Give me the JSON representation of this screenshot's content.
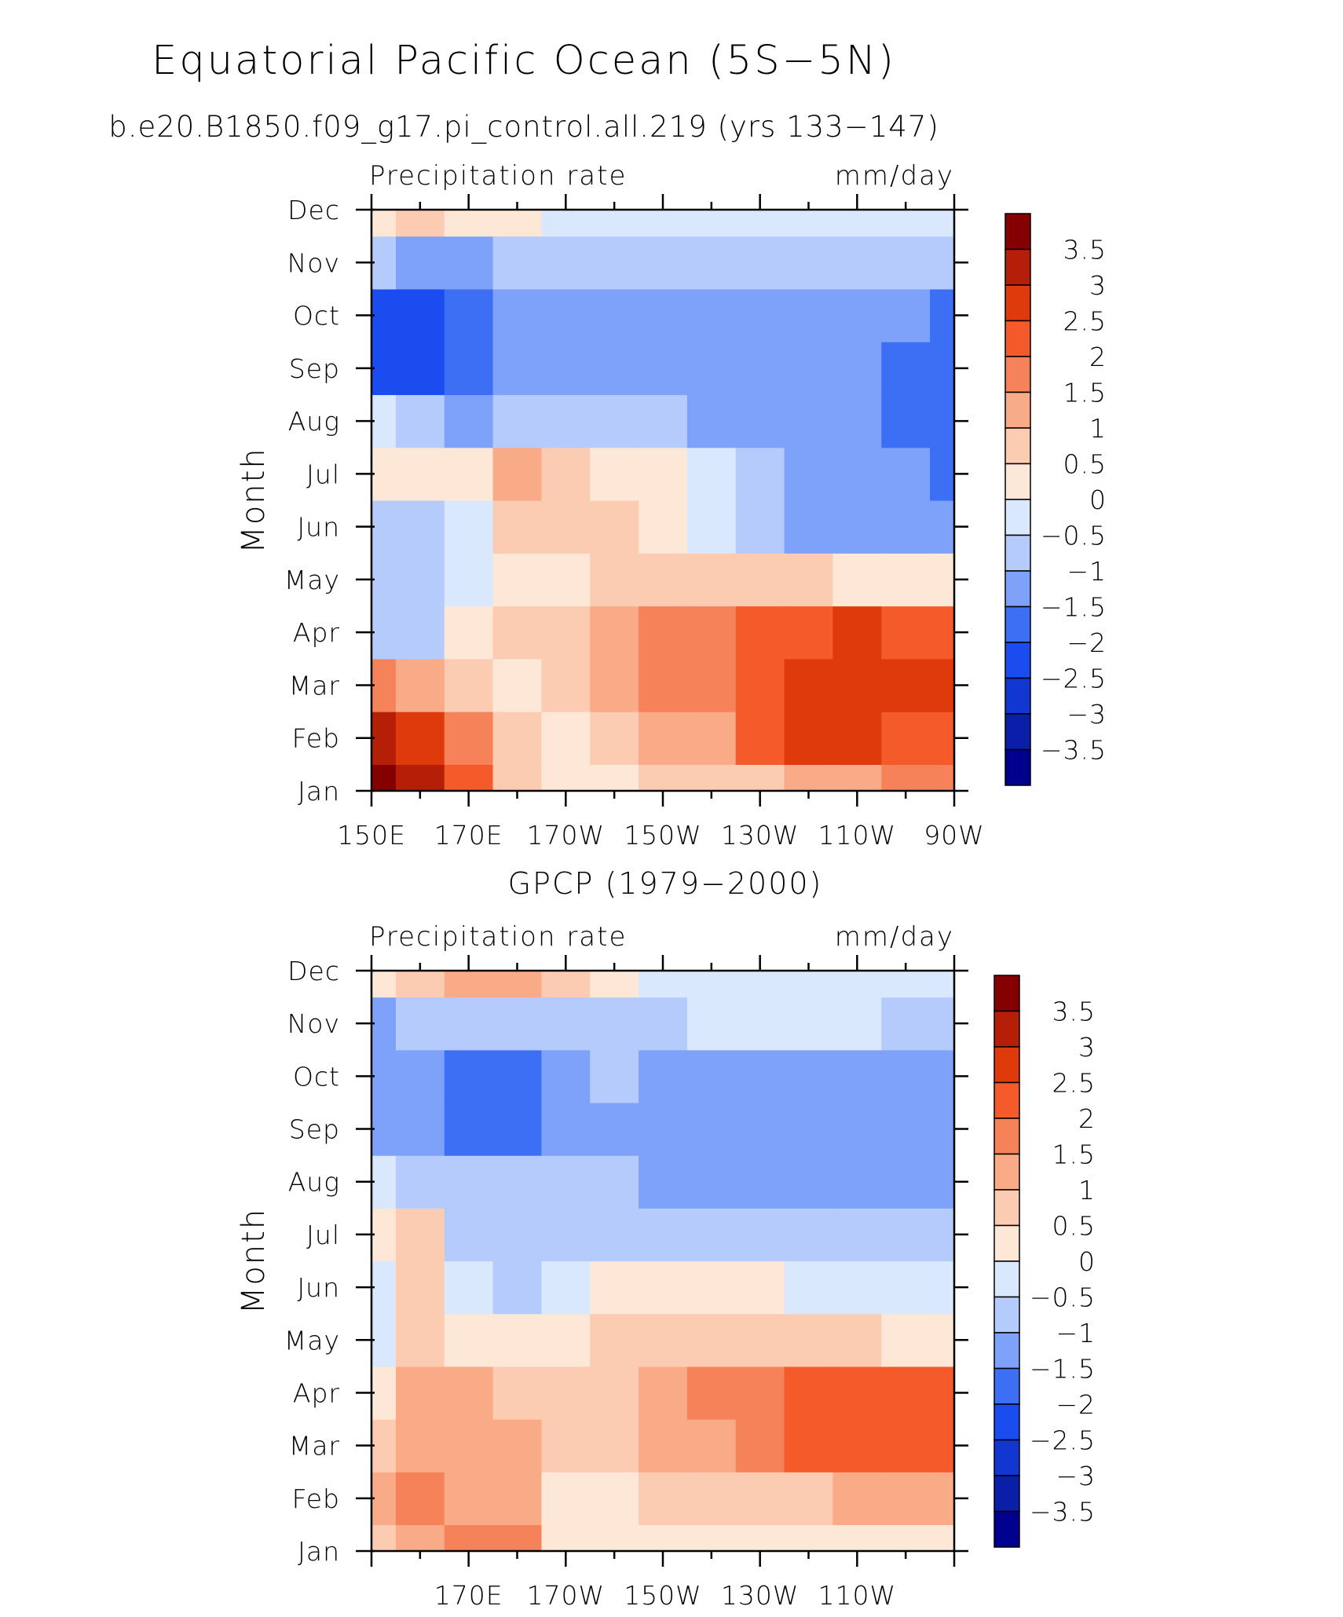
{
  "page": {
    "title": "Equatorial Pacific Ocean (5S−5N)",
    "subtitle": "b.e20.B1850.f09_g17.pi_control.all.219 (yrs 133−147)"
  },
  "colorbar": {
    "levels": [
      -3.5,
      -3,
      -2.5,
      -2,
      -1.5,
      -1,
      -0.5,
      0,
      0.5,
      1,
      1.5,
      2,
      2.5,
      3,
      3.5
    ],
    "labels": [
      "3.5",
      "3",
      "2.5",
      "2",
      "1.5",
      "1",
      "0.5",
      "0",
      "−0.5",
      "−1",
      "−1.5",
      "−2",
      "−2.5",
      "−3",
      "−3.5"
    ],
    "colors": [
      "#00008f",
      "#0a1fa8",
      "#1236d0",
      "#1b4cf0",
      "#3d6ff5",
      "#7ea2fa",
      "#b4cbfb",
      "#d9e8fc",
      "#fde7d6",
      "#fbccb2",
      "#f9aa87",
      "#f6825a",
      "#f45a2a",
      "#de3a0c",
      "#b51f08",
      "#850000"
    ]
  },
  "chart_data": [
    {
      "type": "heatmap",
      "title": "",
      "left_label": "Precipitation rate",
      "right_label": "mm/day",
      "ylabel": "Month",
      "xlabel": "",
      "x_tick_labels": [
        "150E",
        "170E",
        "170W",
        "150W",
        "130W",
        "110W",
        "90W"
      ],
      "y_tick_labels": [
        "Jan",
        "Feb",
        "Mar",
        "Apr",
        "May",
        "Jun",
        "Jul",
        "Aug",
        "Sep",
        "Oct",
        "Nov",
        "Dec"
      ],
      "x": [
        150,
        160,
        170,
        180,
        190,
        200,
        210,
        220,
        230,
        240,
        250,
        260,
        270
      ],
      "units": "mm/day",
      "values": [
        [
          3.8,
          3.2,
          2.0,
          0.8,
          0.1,
          0.3,
          0.5,
          0.6,
          0.9,
          1.2,
          1.4,
          1.6,
          1.8
        ],
        [
          3.0,
          2.5,
          1.5,
          0.6,
          0.4,
          0.7,
          1.0,
          1.4,
          2.0,
          2.6,
          2.6,
          2.4,
          2.2
        ],
        [
          1.5,
          1.2,
          0.5,
          0.3,
          0.6,
          1.0,
          1.6,
          1.9,
          2.3,
          2.7,
          2.8,
          2.6,
          2.6
        ],
        [
          -0.6,
          -0.7,
          0.0,
          0.5,
          0.7,
          1.0,
          1.6,
          1.9,
          2.0,
          2.3,
          2.7,
          2.4,
          2.4
        ],
        [
          -0.8,
          -0.7,
          -0.3,
          0.2,
          0.4,
          0.6,
          0.8,
          0.8,
          0.7,
          0.6,
          0.4,
          0.2,
          0.1
        ],
        [
          -0.6,
          -0.6,
          -0.2,
          0.6,
          0.7,
          0.6,
          0.3,
          -0.2,
          -0.8,
          -1.1,
          -1.3,
          -1.4,
          -1.4
        ],
        [
          0.3,
          0.3,
          0.3,
          1.0,
          0.8,
          0.4,
          0.0,
          -0.5,
          -0.9,
          -1.1,
          -1.4,
          -1.5,
          -1.6
        ],
        [
          -0.4,
          -0.8,
          -1.2,
          -0.8,
          -0.6,
          -0.8,
          -1.0,
          -1.1,
          -1.2,
          -1.3,
          -1.4,
          -1.6,
          -1.7
        ],
        [
          -2.3,
          -2.5,
          -2.0,
          -1.2,
          -1.1,
          -1.1,
          -1.2,
          -1.2,
          -1.2,
          -1.2,
          -1.3,
          -1.6,
          -1.8
        ],
        [
          -2.3,
          -2.2,
          -1.8,
          -1.2,
          -1.2,
          -1.2,
          -1.2,
          -1.2,
          -1.2,
          -1.2,
          -1.3,
          -1.4,
          -1.8
        ],
        [
          -1.0,
          -1.2,
          -1.2,
          -1.0,
          -0.9,
          -0.9,
          -0.8,
          -0.7,
          -0.6,
          -0.6,
          -0.6,
          -0.6,
          -0.6
        ],
        [
          0.2,
          0.6,
          0.4,
          0.0,
          -0.3,
          -0.4,
          -0.4,
          -0.4,
          -0.4,
          -0.4,
          -0.3,
          -0.3,
          -0.3
        ]
      ]
    },
    {
      "type": "heatmap",
      "title": "GPCP (1979−2000)",
      "left_label": "Precipitation rate",
      "right_label": "mm/day",
      "ylabel": "Month",
      "xlabel": "",
      "x_tick_labels": [
        "170E",
        "170W",
        "150W",
        "130W",
        "110W"
      ],
      "y_tick_labels": [
        "Jan",
        "Feb",
        "Mar",
        "Apr",
        "May",
        "Jun",
        "Jul",
        "Aug",
        "Sep",
        "Oct",
        "Nov",
        "Dec"
      ],
      "x": [
        150,
        160,
        170,
        180,
        190,
        200,
        210,
        220,
        230,
        240,
        250,
        260,
        270
      ],
      "units": "mm/day",
      "values": [
        [
          0.5,
          1.3,
          1.6,
          1.9,
          0.4,
          0.3,
          0.3,
          0.2,
          0.1,
          0.0,
          0.2,
          0.2,
          0.3
        ],
        [
          1.0,
          1.5,
          1.1,
          1.3,
          0.3,
          0.4,
          0.5,
          0.6,
          0.7,
          0.8,
          1.0,
          1.2,
          1.4
        ],
        [
          0.8,
          1.2,
          1.4,
          1.3,
          0.6,
          0.8,
          1.0,
          1.3,
          1.6,
          2.0,
          2.2,
          2.0,
          2.2
        ],
        [
          0.2,
          1.0,
          1.1,
          0.9,
          0.8,
          0.9,
          1.2,
          1.6,
          1.9,
          2.1,
          2.1,
          2.0,
          2.2
        ],
        [
          -0.3,
          0.7,
          0.1,
          0.2,
          0.4,
          0.5,
          0.6,
          0.6,
          0.7,
          0.6,
          0.5,
          0.4,
          0.3
        ],
        [
          -0.4,
          0.6,
          -0.4,
          -0.8,
          -0.3,
          0.0,
          0.3,
          0.3,
          0.0,
          -0.3,
          -0.4,
          -0.5,
          -0.4
        ],
        [
          0.2,
          0.7,
          -0.6,
          -0.8,
          -0.7,
          -0.6,
          -0.6,
          -0.6,
          -0.7,
          -0.7,
          -0.8,
          -0.9,
          -0.9
        ],
        [
          -0.4,
          -0.7,
          -0.7,
          -0.9,
          -0.9,
          -0.9,
          -1.1,
          -1.2,
          -1.2,
          -1.2,
          -1.1,
          -1.3,
          -1.2
        ],
        [
          -1.5,
          -1.4,
          -1.9,
          -2.0,
          -1.4,
          -1.2,
          -1.3,
          -1.4,
          -1.4,
          -1.3,
          -1.2,
          -1.4,
          -1.4
        ],
        [
          -1.3,
          -1.2,
          -1.6,
          -1.8,
          -1.2,
          -1.0,
          -1.1,
          -1.2,
          -1.3,
          -1.2,
          -1.1,
          -1.2,
          -1.4
        ],
        [
          -1.2,
          -1.0,
          -0.9,
          -0.8,
          -0.7,
          -0.7,
          -0.6,
          -0.5,
          -0.5,
          -0.5,
          -0.5,
          -0.6,
          -0.7
        ],
        [
          0.2,
          0.6,
          1.4,
          1.0,
          0.8,
          0.3,
          -0.2,
          -0.3,
          -0.3,
          -0.4,
          -0.4,
          -0.4,
          -0.5
        ]
      ]
    }
  ]
}
